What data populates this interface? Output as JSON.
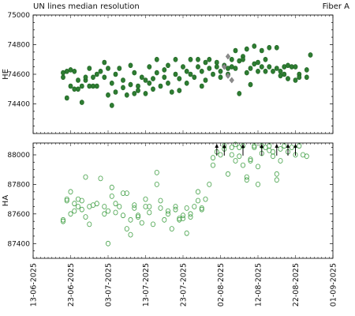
{
  "figure": {
    "title_left": "UN lines median resolution",
    "title_right": "Fiber A"
  },
  "chart_data": [
    {
      "type": "scatter",
      "panel": "top",
      "ylabel": "HE",
      "ylim": [
        74200,
        75000
      ],
      "yticks": [
        74400,
        74600,
        74800,
        75000
      ],
      "grid": false,
      "series": [
        {
          "marker": "filled-circle",
          "color": "#2e7d32",
          "points": [
            [
              "2025-06-21",
              74580
            ],
            [
              "2025-06-21",
              74610
            ],
            [
              "2025-06-22",
              74440
            ],
            [
              "2025-06-22",
              74620
            ],
            [
              "2025-06-23",
              74630
            ],
            [
              "2025-06-23",
              74520
            ],
            [
              "2025-06-24",
              74620
            ],
            [
              "2025-06-24",
              74500
            ],
            [
              "2025-06-25",
              74560
            ],
            [
              "2025-06-25",
              74500
            ],
            [
              "2025-06-26",
              74410
            ],
            [
              "2025-06-26",
              74520
            ],
            [
              "2025-06-27",
              74560
            ],
            [
              "2025-06-27",
              74580
            ],
            [
              "2025-06-28",
              74640
            ],
            [
              "2025-06-28",
              74520
            ],
            [
              "2025-06-29",
              74580
            ],
            [
              "2025-06-29",
              74520
            ],
            [
              "2025-06-30",
              74600
            ],
            [
              "2025-06-30",
              74520
            ],
            [
              "2025-07-01",
              74620
            ],
            [
              "2025-07-02",
              74680
            ],
            [
              "2025-07-02",
              74580
            ],
            [
              "2025-07-03",
              74640
            ],
            [
              "2025-07-03",
              74460
            ],
            [
              "2025-07-04",
              74390
            ],
            [
              "2025-07-04",
              74540
            ],
            [
              "2025-07-05",
              74600
            ],
            [
              "2025-07-05",
              74480
            ],
            [
              "2025-07-06",
              74640
            ],
            [
              "2025-07-07",
              74560
            ],
            [
              "2025-07-07",
              74510
            ],
            [
              "2025-07-08",
              74460
            ],
            [
              "2025-07-09",
              74660
            ],
            [
              "2025-07-09",
              74530
            ],
            [
              "2025-07-10",
              74470
            ],
            [
              "2025-07-10",
              74610
            ],
            [
              "2025-07-11",
              74520
            ],
            [
              "2025-07-11",
              74490
            ],
            [
              "2025-07-12",
              74580
            ],
            [
              "2025-07-13",
              74470
            ],
            [
              "2025-07-13",
              74560
            ],
            [
              "2025-07-14",
              74650
            ],
            [
              "2025-07-14",
              74540
            ],
            [
              "2025-07-15",
              74500
            ],
            [
              "2025-07-15",
              74570
            ],
            [
              "2025-07-16",
              74700
            ],
            [
              "2025-07-16",
              74610
            ],
            [
              "2025-07-17",
              74520
            ],
            [
              "2025-07-18",
              74580
            ],
            [
              "2025-07-18",
              74630
            ],
            [
              "2025-07-19",
              74660
            ],
            [
              "2025-07-19",
              74540
            ],
            [
              "2025-07-20",
              74480
            ],
            [
              "2025-07-21",
              74600
            ],
            [
              "2025-07-21",
              74700
            ],
            [
              "2025-07-22",
              74490
            ],
            [
              "2025-07-22",
              74570
            ],
            [
              "2025-07-23",
              74650
            ],
            [
              "2025-07-24",
              74620
            ],
            [
              "2025-07-24",
              74540
            ],
            [
              "2025-07-25",
              74700
            ],
            [
              "2025-07-25",
              74600
            ],
            [
              "2025-07-26",
              74580
            ],
            [
              "2025-07-27",
              74650
            ],
            [
              "2025-07-27",
              74700
            ],
            [
              "2025-07-28",
              74520
            ],
            [
              "2025-07-28",
              74620
            ],
            [
              "2025-07-29",
              74680
            ],
            [
              "2025-07-29",
              74560
            ],
            [
              "2025-07-30",
              74700
            ],
            [
              "2025-07-30",
              74640
            ],
            [
              "2025-07-31",
              74600
            ],
            [
              "2025-08-01",
              74680
            ],
            [
              "2025-08-01",
              74650
            ],
            [
              "2025-08-02",
              74620
            ],
            [
              "2025-08-02",
              74580
            ],
            [
              "2025-08-03",
              74660
            ],
            [
              "2025-08-04",
              74600
            ],
            [
              "2025-08-04",
              74640
            ],
            [
              "2025-08-05",
              74700
            ],
            [
              "2025-08-05",
              74650
            ],
            [
              "2025-08-06",
              74760
            ],
            [
              "2025-08-06",
              74640
            ],
            [
              "2025-08-07",
              74470
            ],
            [
              "2025-08-07",
              74690
            ],
            [
              "2025-08-08",
              74720
            ],
            [
              "2025-08-08",
              74700
            ],
            [
              "2025-08-09",
              74610
            ],
            [
              "2025-08-09",
              74770
            ],
            [
              "2025-08-10",
              74530
            ],
            [
              "2025-08-10",
              74640
            ],
            [
              "2025-08-11",
              74790
            ],
            [
              "2025-08-11",
              74670
            ],
            [
              "2025-08-12",
              74680
            ],
            [
              "2025-08-12",
              74620
            ],
            [
              "2025-08-13",
              74650
            ],
            [
              "2025-08-13",
              74760
            ],
            [
              "2025-08-14",
              74700
            ],
            [
              "2025-08-14",
              74620
            ],
            [
              "2025-08-15",
              74650
            ],
            [
              "2025-08-15",
              74780
            ],
            [
              "2025-08-16",
              74620
            ],
            [
              "2025-08-17",
              74780
            ],
            [
              "2025-08-17",
              74640
            ],
            [
              "2025-08-18",
              74590
            ],
            [
              "2025-08-18",
              74620
            ],
            [
              "2025-08-19",
              74650
            ],
            [
              "2025-08-19",
              74600
            ],
            [
              "2025-08-20",
              74660
            ],
            [
              "2025-08-20",
              74570
            ],
            [
              "2025-08-21",
              74650
            ],
            [
              "2025-08-22",
              74650
            ],
            [
              "2025-08-22",
              74560
            ],
            [
              "2025-08-23",
              74600
            ],
            [
              "2025-08-23",
              74580
            ],
            [
              "2025-08-25",
              74630
            ],
            [
              "2025-08-25",
              74580
            ],
            [
              "2025-08-26",
              74730
            ]
          ]
        },
        {
          "marker": "diamond",
          "color": "#8c8c8c",
          "points": [
            [
              "2025-08-03",
              74650
            ],
            [
              "2025-08-04",
              74720
            ],
            [
              "2025-08-04",
              74590
            ],
            [
              "2025-08-05",
              74560
            ]
          ]
        }
      ]
    },
    {
      "type": "scatter",
      "panel": "bottom",
      "ylabel": "HA",
      "ylim": [
        87300,
        88080
      ],
      "yticks": [
        87400,
        87600,
        87800,
        88000
      ],
      "grid": false,
      "series": [
        {
          "marker": "open-circle",
          "color": "#43a047",
          "points": [
            [
              "2025-06-21",
              87560
            ],
            [
              "2025-06-21",
              87550
            ],
            [
              "2025-06-22",
              87690
            ],
            [
              "2025-06-22",
              87700
            ],
            [
              "2025-06-23",
              87750
            ],
            [
              "2025-06-23",
              87600
            ],
            [
              "2025-06-24",
              87670
            ],
            [
              "2025-06-24",
              87620
            ],
            [
              "2025-06-25",
              87700
            ],
            [
              "2025-06-25",
              87650
            ],
            [
              "2025-06-26",
              87630
            ],
            [
              "2025-06-26",
              87690
            ],
            [
              "2025-06-27",
              87580
            ],
            [
              "2025-06-27",
              87850
            ],
            [
              "2025-06-28",
              87650
            ],
            [
              "2025-06-28",
              87530
            ],
            [
              "2025-06-29",
              87660
            ],
            [
              "2025-06-30",
              87670
            ],
            [
              "2025-07-01",
              87840
            ],
            [
              "2025-07-02",
              87650
            ],
            [
              "2025-07-02",
              87600
            ],
            [
              "2025-07-03",
              87400
            ],
            [
              "2025-07-03",
              87620
            ],
            [
              "2025-07-04",
              87780
            ],
            [
              "2025-07-04",
              87720
            ],
            [
              "2025-07-05",
              87670
            ],
            [
              "2025-07-05",
              87610
            ],
            [
              "2025-07-06",
              87650
            ],
            [
              "2025-07-07",
              87740
            ],
            [
              "2025-07-07",
              87590
            ],
            [
              "2025-07-08",
              87500
            ],
            [
              "2025-07-08",
              87740
            ],
            [
              "2025-07-09",
              87460
            ],
            [
              "2025-07-09",
              87560
            ],
            [
              "2025-07-10",
              87660
            ],
            [
              "2025-07-10",
              87640
            ],
            [
              "2025-07-11",
              87590
            ],
            [
              "2025-07-11",
              87580
            ],
            [
              "2025-07-12",
              87540
            ],
            [
              "2025-07-13",
              87700
            ],
            [
              "2025-07-13",
              87650
            ],
            [
              "2025-07-14",
              87610
            ],
            [
              "2025-07-14",
              87650
            ],
            [
              "2025-07-15",
              87530
            ],
            [
              "2025-07-16",
              87880
            ],
            [
              "2025-07-16",
              87800
            ],
            [
              "2025-07-17",
              87690
            ],
            [
              "2025-07-17",
              87640
            ],
            [
              "2025-07-18",
              87560
            ],
            [
              "2025-07-19",
              87600
            ],
            [
              "2025-07-19",
              87620
            ],
            [
              "2025-07-20",
              87500
            ],
            [
              "2025-07-21",
              87650
            ],
            [
              "2025-07-21",
              87630
            ],
            [
              "2025-07-22",
              87560
            ],
            [
              "2025-07-22",
              87570
            ],
            [
              "2025-07-23",
              87570
            ],
            [
              "2025-07-23",
              87590
            ],
            [
              "2025-07-24",
              87470
            ],
            [
              "2025-07-24",
              87640
            ],
            [
              "2025-07-25",
              87580
            ],
            [
              "2025-07-25",
              87600
            ],
            [
              "2025-07-26",
              87650
            ],
            [
              "2025-07-27",
              87690
            ],
            [
              "2025-07-27",
              87750
            ],
            [
              "2025-07-28",
              87630
            ],
            [
              "2025-07-28",
              87640
            ],
            [
              "2025-07-29",
              87700
            ],
            [
              "2025-07-30",
              87800
            ],
            [
              "2025-07-31",
              87980
            ],
            [
              "2025-07-31",
              87930
            ],
            [
              "2025-08-01",
              88020
            ],
            [
              "2025-08-02",
              88000
            ],
            [
              "2025-08-03",
              88060
            ],
            [
              "2025-08-03",
              88040
            ],
            [
              "2025-08-04",
              87870
            ],
            [
              "2025-08-05",
              88050
            ],
            [
              "2025-08-05",
              88000
            ],
            [
              "2025-08-06",
              87960
            ],
            [
              "2025-08-06",
              88070
            ],
            [
              "2025-08-07",
              87990
            ],
            [
              "2025-08-07",
              88050
            ],
            [
              "2025-08-08",
              87930
            ],
            [
              "2025-08-08",
              88060
            ],
            [
              "2025-08-09",
              87850
            ],
            [
              "2025-08-09",
              87830
            ],
            [
              "2025-08-10",
              87970
            ],
            [
              "2025-08-10",
              87960
            ],
            [
              "2025-08-11",
              88050
            ],
            [
              "2025-08-11",
              88060
            ],
            [
              "2025-08-12",
              87800
            ],
            [
              "2025-08-12",
              87920
            ],
            [
              "2025-08-13",
              88060
            ],
            [
              "2025-08-13",
              88010
            ],
            [
              "2025-08-14",
              88050
            ],
            [
              "2025-08-15",
              88060
            ],
            [
              "2025-08-15",
              88030
            ],
            [
              "2025-08-16",
              88020
            ],
            [
              "2025-08-16",
              87990
            ],
            [
              "2025-08-17",
              87830
            ],
            [
              "2025-08-17",
              87870
            ],
            [
              "2025-08-18",
              87960
            ],
            [
              "2025-08-18",
              88040
            ],
            [
              "2025-08-19",
              88060
            ],
            [
              "2025-08-20",
              88020
            ],
            [
              "2025-08-21",
              88050
            ],
            [
              "2025-08-22",
              88000
            ],
            [
              "2025-08-23",
              88060
            ],
            [
              "2025-08-24",
              88000
            ],
            [
              "2025-08-25",
              87990
            ]
          ]
        },
        {
          "marker": "up-arrow",
          "color": "#000000",
          "note": "values above plotted range",
          "x": [
            "2025-08-01",
            "2025-08-03",
            "2025-08-08",
            "2025-08-13",
            "2025-08-17",
            "2025-08-20",
            "2025-08-22"
          ]
        }
      ]
    }
  ],
  "x_axis": {
    "shared": true,
    "xlim": [
      "2025-06-13",
      "2025-09-01"
    ],
    "ticks": [
      "13-06-2025",
      "23-06-2025",
      "03-07-2025",
      "13-07-2025",
      "23-07-2025",
      "02-08-2025",
      "12-08-2025",
      "22-08-2025",
      "01-09-2025"
    ]
  }
}
